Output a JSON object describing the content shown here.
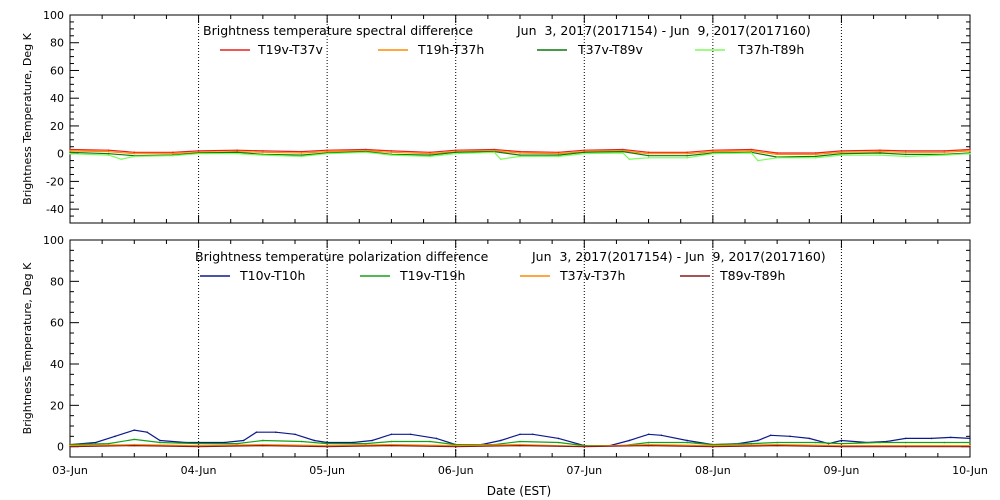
{
  "x_axis": {
    "label": "Date (EST)",
    "ticks": [
      "03-Jun",
      "04-Jun",
      "05-Jun",
      "06-Jun",
      "07-Jun",
      "08-Jun",
      "09-Jun",
      "10-Jun"
    ]
  },
  "chart_data": [
    {
      "type": "line",
      "title": "Brightness temperature spectral difference",
      "date_range": "Jun  3, 2017(2017154) - Jun  9, 2017(2017160)",
      "ylabel": "Brightness Temperature, Deg K",
      "xlabel": "",
      "xlim": [
        0,
        7
      ],
      "ylim": [
        -50,
        100
      ],
      "yticks": [
        -40,
        -20,
        0,
        20,
        40,
        60,
        80,
        100
      ],
      "grid": "vertical dotted at day boundaries",
      "legend_placement": "top",
      "series": [
        {
          "name": "T19v-T37v",
          "color": "#e8201c",
          "x": [
            0,
            0.3,
            0.5,
            0.8,
            1.0,
            1.3,
            1.5,
            1.8,
            2.0,
            2.3,
            2.5,
            2.8,
            3.0,
            3.3,
            3.5,
            3.8,
            4.0,
            4.3,
            4.5,
            4.8,
            5.0,
            5.3,
            5.5,
            5.8,
            6.0,
            6.3,
            6.5,
            6.8,
            7.0
          ],
          "values": [
            3,
            2.5,
            1,
            1,
            2,
            2.5,
            2,
            1.5,
            2.5,
            3,
            2,
            1,
            2.5,
            3,
            1.5,
            1,
            2.5,
            3,
            1,
            1,
            2.5,
            3,
            0.5,
            0.5,
            2,
            2.5,
            2,
            2,
            3
          ]
        },
        {
          "name": "T19h-T37h",
          "color": "#ff8c00",
          "x": [
            0,
            0.3,
            0.5,
            0.8,
            1.0,
            1.3,
            1.5,
            1.8,
            2.0,
            2.3,
            2.5,
            2.8,
            3.0,
            3.3,
            3.5,
            3.8,
            4.0,
            4.3,
            4.5,
            4.8,
            5.0,
            5.3,
            5.5,
            5.8,
            6.0,
            6.3,
            6.5,
            6.8,
            7.0
          ],
          "values": [
            2,
            1.5,
            0,
            0,
            1,
            1.5,
            1,
            0.5,
            1.5,
            2,
            1,
            0,
            1.5,
            2,
            0.5,
            0,
            1.5,
            2,
            0,
            0,
            1.5,
            2,
            -0.5,
            -0.5,
            1,
            1.5,
            1,
            1,
            2
          ]
        },
        {
          "name": "T37v-T89v",
          "color": "#0a7a0a",
          "x": [
            0,
            0.3,
            0.5,
            0.8,
            1.0,
            1.3,
            1.5,
            1.8,
            2.0,
            2.3,
            2.5,
            2.8,
            3.0,
            3.3,
            3.5,
            3.8,
            4.0,
            4.3,
            4.5,
            4.8,
            5.0,
            5.3,
            5.5,
            5.8,
            6.0,
            6.3,
            6.5,
            6.8,
            7.0
          ],
          "values": [
            1,
            0,
            -1.5,
            -1,
            0.5,
            1,
            -0.5,
            -1,
            0.5,
            1.5,
            -0.5,
            -1,
            1,
            1.5,
            -1,
            -1,
            1,
            1.5,
            -1.5,
            -1.5,
            0.5,
            1,
            -2.5,
            -2,
            0,
            0.5,
            -0.5,
            -0.5,
            0.5
          ]
        },
        {
          "name": "T37h-T89h",
          "color": "#7cfc5c",
          "x": [
            0,
            0.3,
            0.4,
            0.5,
            0.8,
            1.0,
            1.3,
            1.5,
            1.8,
            2.0,
            2.3,
            2.5,
            2.8,
            3.0,
            3.3,
            3.35,
            3.5,
            3.8,
            4.0,
            4.3,
            4.35,
            4.5,
            4.8,
            5.0,
            5.3,
            5.35,
            5.5,
            5.8,
            6.0,
            6.3,
            6.5,
            6.8,
            7.0
          ],
          "values": [
            0,
            -1,
            -4,
            -2,
            -1.5,
            0,
            0,
            -1,
            -2,
            0,
            1,
            -1,
            -2,
            0,
            1,
            -4,
            -2,
            -2,
            0,
            0.5,
            -4,
            -3,
            -3,
            0,
            0.5,
            -5,
            -3,
            -3,
            -1,
            -1,
            -2,
            -1,
            0
          ]
        }
      ]
    },
    {
      "type": "line",
      "title": "Brightness temperature polarization difference",
      "date_range": "Jun  3, 2017(2017154) - Jun  9, 2017(2017160)",
      "ylabel": "Brightness Temperature, Deg K",
      "xlabel": "Date (EST)",
      "xlim": [
        0,
        7
      ],
      "ylim": [
        -5,
        100
      ],
      "yticks": [
        0,
        20,
        40,
        60,
        80,
        100
      ],
      "grid": "vertical dotted at day boundaries",
      "legend_placement": "top",
      "series": [
        {
          "name": "T10v-T10h",
          "color": "#0d1a8c",
          "x": [
            0,
            0.2,
            0.35,
            0.5,
            0.6,
            0.7,
            0.9,
            1.0,
            1.2,
            1.35,
            1.45,
            1.6,
            1.75,
            1.9,
            2.0,
            2.2,
            2.35,
            2.5,
            2.65,
            2.85,
            3.0,
            3.2,
            3.35,
            3.5,
            3.6,
            3.8,
            4.0,
            4.2,
            4.35,
            4.5,
            4.6,
            4.8,
            5.0,
            5.2,
            5.35,
            5.45,
            5.6,
            5.75,
            5.9,
            6.0,
            6.2,
            6.35,
            6.5,
            6.7,
            6.85,
            7.0
          ],
          "values": [
            1,
            2,
            5,
            8,
            7,
            3,
            2,
            2,
            2,
            3,
            7,
            7,
            6,
            3,
            2,
            2,
            3,
            6,
            6,
            4,
            1,
            1,
            3,
            6,
            6,
            4,
            0.5,
            0.5,
            3,
            6,
            5.5,
            3,
            1,
            1.5,
            3,
            5.5,
            5,
            4,
            1.5,
            3,
            2,
            2.5,
            4,
            4,
            4.5,
            4
          ]
        },
        {
          "name": "T19v-T19h",
          "color": "#16a016",
          "x": [
            0,
            0.3,
            0.5,
            0.7,
            1.0,
            1.3,
            1.5,
            1.8,
            2.0,
            2.3,
            2.5,
            2.8,
            3.0,
            3.3,
            3.5,
            3.8,
            4.0,
            4.3,
            4.5,
            4.8,
            5.0,
            5.3,
            5.5,
            5.8,
            6.0,
            6.3,
            6.5,
            6.8,
            7.0
          ],
          "values": [
            1,
            1.5,
            3.5,
            2,
            1.5,
            1.5,
            3,
            2.5,
            1.5,
            1.5,
            2.5,
            2.5,
            1,
            1,
            2.5,
            2,
            0.5,
            0.5,
            2,
            2,
            1,
            1.5,
            2,
            2,
            1.5,
            2,
            2,
            2,
            2
          ]
        },
        {
          "name": "T37v-T37h",
          "color": "#ff8c00",
          "x": [
            0,
            0.5,
            1.0,
            1.5,
            2.0,
            2.5,
            3.0,
            3.5,
            4.0,
            4.5,
            5.0,
            5.5,
            6.0,
            6.5,
            7.0
          ],
          "values": [
            0.5,
            1,
            0.5,
            1,
            0.5,
            1,
            0.5,
            1,
            0.2,
            1,
            0.5,
            1,
            0.5,
            0.5,
            0.5
          ]
        },
        {
          "name": "T89v-T89h",
          "color": "#8b1a1a",
          "x": [
            0,
            0.5,
            1.0,
            1.5,
            2.0,
            2.5,
            3.0,
            3.5,
            4.0,
            4.5,
            5.0,
            5.5,
            6.0,
            6.5,
            7.0
          ],
          "values": [
            0,
            0.5,
            0,
            0.5,
            0,
            0.5,
            0,
            0.5,
            0,
            0.5,
            0,
            0.5,
            0,
            0,
            0
          ]
        }
      ]
    }
  ]
}
